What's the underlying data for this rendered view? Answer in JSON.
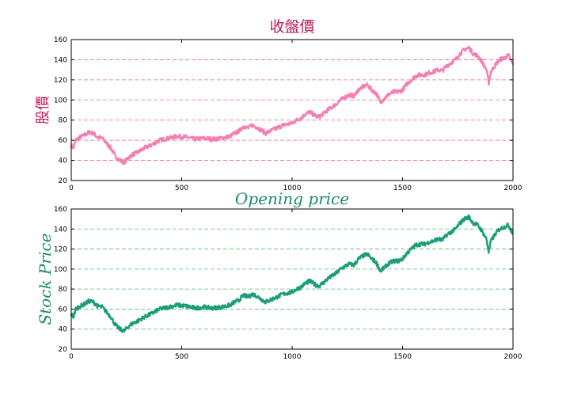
{
  "chart_data": [
    {
      "type": "line",
      "title": "收盤價",
      "xlabel": "",
      "ylabel": "股價",
      "xlim": [
        0,
        2000
      ],
      "ylim": [
        20,
        160
      ],
      "xticks": [
        0,
        500,
        1000,
        1500,
        2000
      ],
      "yticks": [
        20,
        40,
        60,
        80,
        100,
        120,
        140,
        160
      ],
      "grid": "horizontal dashed",
      "colors": {
        "line": "#f47fb2",
        "title": "#c2185b",
        "grid": "#e86a7e"
      },
      "series": [
        {
          "x": [
            0,
            10,
            20,
            40,
            60,
            80,
            100,
            120,
            140,
            160,
            180,
            200,
            220,
            240,
            260,
            280,
            300,
            330,
            360,
            400,
            440,
            480,
            520,
            560,
            600,
            640,
            680,
            720,
            740,
            760,
            780,
            800,
            820,
            840,
            860,
            880,
            900,
            920,
            940,
            960,
            980,
            1000,
            1020,
            1040,
            1060,
            1080,
            1100,
            1120,
            1140,
            1160,
            1180,
            1200,
            1220,
            1240,
            1260,
            1280,
            1300,
            1320,
            1340,
            1360,
            1380,
            1400,
            1420,
            1440,
            1460,
            1480,
            1500,
            1520,
            1540,
            1560,
            1580,
            1600,
            1620,
            1640,
            1660,
            1680,
            1700,
            1720,
            1740,
            1760,
            1780,
            1800,
            1820,
            1840,
            1860,
            1880,
            1890,
            1900,
            1920,
            1940,
            1960,
            1980,
            2000
          ],
          "values": [
            55,
            52,
            60,
            63,
            65,
            68,
            67,
            63,
            62,
            57,
            52,
            44,
            40,
            38,
            43,
            46,
            48,
            52,
            55,
            60,
            62,
            64,
            63,
            61,
            62,
            61,
            62,
            64,
            67,
            69,
            74,
            72,
            75,
            73,
            70,
            67,
            69,
            71,
            73,
            75,
            76,
            77,
            80,
            82,
            86,
            88,
            85,
            83,
            86,
            90,
            93,
            96,
            100,
            103,
            105,
            104,
            110,
            113,
            115,
            110,
            107,
            98,
            102,
            106,
            108,
            108,
            110,
            116,
            120,
            124,
            125,
            125,
            127,
            128,
            130,
            129,
            134,
            137,
            140,
            146,
            150,
            152,
            146,
            144,
            138,
            130,
            117,
            128,
            135,
            140,
            142,
            144,
            135
          ]
        }
      ]
    },
    {
      "type": "line",
      "title": "Opening price",
      "xlabel": "",
      "ylabel": "Stock  Price",
      "xlim": [
        0,
        2000
      ],
      "ylim": [
        20,
        160
      ],
      "xticks": [
        0,
        500,
        1000,
        1500,
        2000
      ],
      "yticks": [
        20,
        40,
        60,
        80,
        100,
        120,
        140,
        160
      ],
      "grid": "horizontal dashed",
      "colors": {
        "line": "#1b9e77",
        "title": "#1b8a6b",
        "grid": "#5dbb63"
      },
      "series": [
        {
          "x": [
            0,
            10,
            20,
            40,
            60,
            80,
            100,
            120,
            140,
            160,
            180,
            200,
            220,
            240,
            260,
            280,
            300,
            330,
            360,
            400,
            440,
            480,
            520,
            560,
            600,
            640,
            680,
            720,
            740,
            760,
            780,
            800,
            820,
            840,
            860,
            880,
            900,
            920,
            940,
            960,
            980,
            1000,
            1020,
            1040,
            1060,
            1080,
            1100,
            1120,
            1140,
            1160,
            1180,
            1200,
            1220,
            1240,
            1260,
            1280,
            1300,
            1320,
            1340,
            1360,
            1380,
            1400,
            1420,
            1440,
            1460,
            1480,
            1500,
            1520,
            1540,
            1560,
            1580,
            1600,
            1620,
            1640,
            1660,
            1680,
            1700,
            1720,
            1740,
            1760,
            1780,
            1800,
            1820,
            1840,
            1860,
            1880,
            1890,
            1900,
            1920,
            1940,
            1960,
            1980,
            2000
          ],
          "values": [
            55,
            52,
            60,
            63,
            65,
            68,
            67,
            63,
            62,
            57,
            52,
            44,
            40,
            38,
            43,
            46,
            48,
            52,
            55,
            60,
            62,
            64,
            63,
            61,
            62,
            61,
            62,
            64,
            67,
            69,
            74,
            72,
            75,
            73,
            70,
            67,
            69,
            71,
            73,
            75,
            76,
            77,
            80,
            82,
            86,
            88,
            85,
            83,
            86,
            90,
            93,
            96,
            100,
            103,
            105,
            104,
            110,
            113,
            115,
            110,
            107,
            98,
            102,
            106,
            108,
            108,
            110,
            116,
            120,
            124,
            125,
            125,
            127,
            128,
            130,
            129,
            134,
            137,
            140,
            146,
            150,
            152,
            146,
            144,
            138,
            130,
            117,
            128,
            135,
            140,
            142,
            144,
            135
          ]
        }
      ]
    }
  ]
}
